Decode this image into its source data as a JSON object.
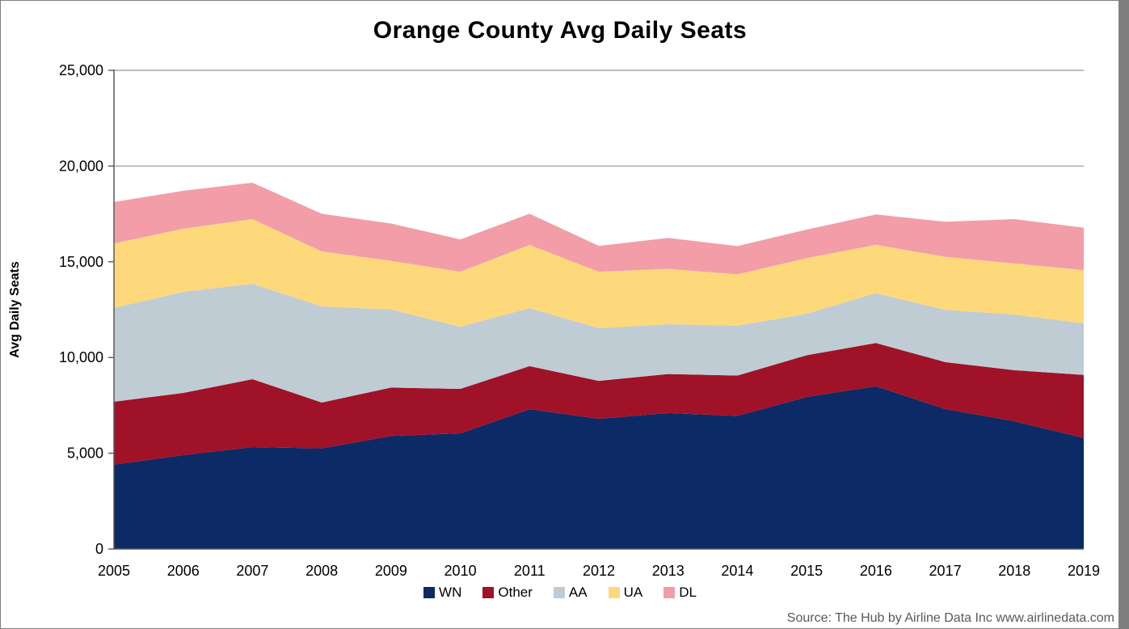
{
  "chart_data": {
    "type": "area",
    "stacked": true,
    "title": "Orange County Avg Daily Seats",
    "ylabel": "Avg Daily Seats",
    "xlabel": "",
    "categories": [
      "2005",
      "2006",
      "2007",
      "2008",
      "2009",
      "2010",
      "2011",
      "2012",
      "2013",
      "2014",
      "2015",
      "2016",
      "2017",
      "2018",
      "2019"
    ],
    "series": [
      {
        "name": "WN",
        "color": "#0C2A66",
        "values": [
          4400,
          4900,
          5320,
          5250,
          5900,
          6040,
          7300,
          6800,
          7100,
          6950,
          7940,
          8500,
          7310,
          6670,
          5800
        ]
      },
      {
        "name": "Other",
        "color": "#A01227",
        "values": [
          3290,
          3250,
          3550,
          2400,
          2530,
          2320,
          2250,
          1980,
          2040,
          2110,
          2180,
          2260,
          2450,
          2670,
          3290
        ]
      },
      {
        "name": "AA",
        "color": "#BFCCD4",
        "values": [
          4900,
          5280,
          4980,
          5020,
          4080,
          3250,
          3030,
          2750,
          2600,
          2600,
          2170,
          2600,
          2730,
          2900,
          2690
        ]
      },
      {
        "name": "UA",
        "color": "#FDD97C",
        "values": [
          3370,
          3300,
          3380,
          2870,
          2540,
          2870,
          3300,
          2950,
          2890,
          2680,
          2900,
          2530,
          2770,
          2670,
          2790
        ]
      },
      {
        "name": "DL",
        "color": "#F29DA8",
        "values": [
          2160,
          1980,
          1900,
          1970,
          1950,
          1690,
          1630,
          1350,
          1620,
          1480,
          1490,
          1580,
          1830,
          2320,
          2210
        ]
      }
    ],
    "ylim": [
      0,
      25000
    ],
    "ytick_interval": 5000,
    "ytick_labels": [
      "0",
      "5,000",
      "10,000",
      "15,000",
      "20,000",
      "25,000"
    ],
    "grid": "horizontal",
    "gridline_color": "#A6A6A6",
    "axis_color": "#595959",
    "legend_position": "bottom"
  },
  "source": {
    "text": "Source: The Hub by Airline Data Inc www.airlinedata.com"
  }
}
